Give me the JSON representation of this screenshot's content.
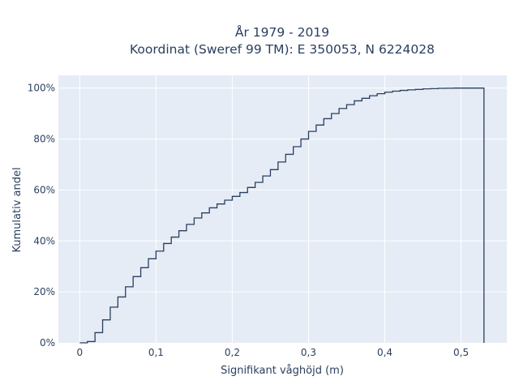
{
  "chart_data": {
    "type": "line",
    "line_shape": "step",
    "title": "År 1979 - 2019",
    "subtitle": "Koordinat (Sweref 99 TM): E 350053, N 6224028",
    "xlabel": "Signifikant våghöjd (m)",
    "ylabel": "Kumulativ andel",
    "xlim": [
      -0.028,
      0.56
    ],
    "ylim": [
      0,
      1.05
    ],
    "xticks": [
      0,
      0.1,
      0.2,
      0.3,
      0.4,
      0.5
    ],
    "xtick_labels": [
      "0",
      "0,1",
      "0,2",
      "0,3",
      "0,4",
      "0,5"
    ],
    "yticks": [
      0,
      0.2,
      0.4,
      0.6,
      0.8,
      1.0
    ],
    "ytick_labels": [
      "0%",
      "20%",
      "40%",
      "60%",
      "80%",
      "100%"
    ],
    "grid": true,
    "colors": {
      "plot_bg": "#e5ecf6",
      "grid": "#ffffff",
      "line": "#2a3f5f",
      "text": "#2a3f5f"
    },
    "series": [
      {
        "x": [
          0,
          0.01,
          0.02,
          0.03,
          0.04,
          0.05,
          0.06,
          0.07,
          0.08,
          0.09,
          0.1,
          0.11,
          0.12,
          0.13,
          0.14,
          0.15,
          0.16,
          0.17,
          0.18,
          0.19,
          0.2,
          0.21,
          0.22,
          0.23,
          0.24,
          0.25,
          0.26,
          0.27,
          0.28,
          0.29,
          0.3,
          0.31,
          0.32,
          0.33,
          0.34,
          0.35,
          0.36,
          0.37,
          0.38,
          0.39,
          0.4,
          0.41,
          0.42,
          0.43,
          0.44,
          0.45,
          0.46,
          0.47,
          0.48,
          0.49,
          0.5,
          0.51,
          0.52,
          0.53
        ],
        "y": [
          0.0,
          0.005,
          0.04,
          0.09,
          0.14,
          0.18,
          0.22,
          0.26,
          0.295,
          0.33,
          0.36,
          0.39,
          0.415,
          0.44,
          0.465,
          0.49,
          0.51,
          0.53,
          0.545,
          0.56,
          0.575,
          0.59,
          0.61,
          0.63,
          0.655,
          0.68,
          0.71,
          0.74,
          0.77,
          0.8,
          0.83,
          0.855,
          0.88,
          0.9,
          0.92,
          0.935,
          0.95,
          0.96,
          0.97,
          0.978,
          0.984,
          0.988,
          0.991,
          0.993,
          0.995,
          0.997,
          0.998,
          0.999,
          0.9995,
          1.0,
          1.0,
          1.0,
          1.0,
          0.0
        ]
      }
    ]
  }
}
